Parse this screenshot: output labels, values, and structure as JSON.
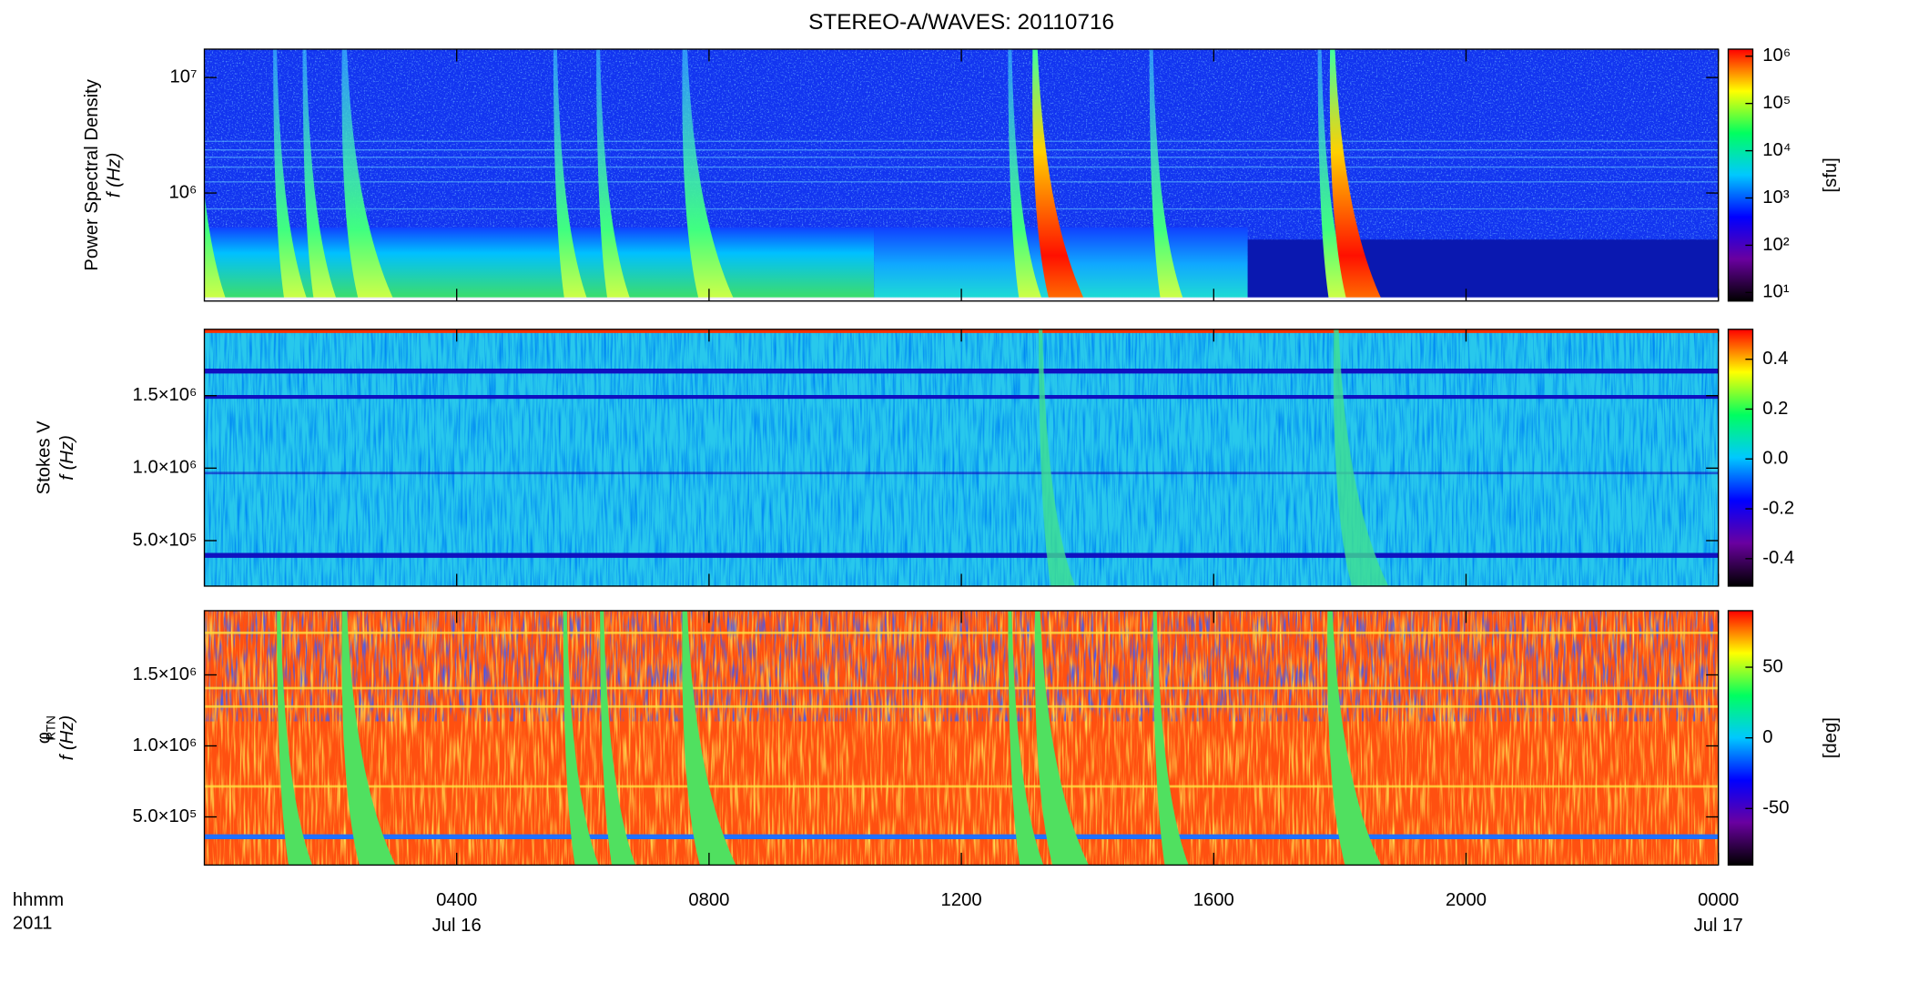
{
  "chart_data": [
    {
      "type": "spectrogram",
      "title": "STEREO-A/WAVES: 20110716",
      "ylabel": "Power Spectral Density",
      "ylabel2": "f (Hz)",
      "ylog": true,
      "ylim": [
        116000,
        17600000
      ],
      "yticks": [
        {
          "value": 1000000,
          "label": "10⁶"
        },
        {
          "value": 10000000,
          "label": "10⁷"
        }
      ],
      "colorbar_log": true,
      "clim": [
        6.6,
        1410000
      ],
      "cticks": [
        {
          "value": 10,
          "label": "10¹"
        },
        {
          "value": 100,
          "label": "10²"
        },
        {
          "value": 1000,
          "label": "10³"
        },
        {
          "value": 10000,
          "label": "10⁴"
        },
        {
          "value": 100000,
          "label": "10⁵"
        },
        {
          "value": 1000000,
          "label": "10⁶"
        }
      ],
      "colorbar_label": "[sfu]",
      "colormap": [
        "#000000",
        "#6a00a0",
        "#0000ff",
        "#00c8ff",
        "#00ff60",
        "#ffff00",
        "#ff0000"
      ]
    },
    {
      "type": "spectrogram",
      "ylabel": "Stokes V",
      "ylabel2": "f (Hz)",
      "ylog": false,
      "ylim": [
        186000,
        1958000
      ],
      "yticks": [
        {
          "value": 500000,
          "label": "5.0×10⁵"
        },
        {
          "value": 1000000,
          "label": "1.0×10⁶"
        },
        {
          "value": 1500000,
          "label": "1.5×10⁶"
        }
      ],
      "colorbar_log": false,
      "clim": [
        -0.51,
        0.52
      ],
      "cticks": [
        -0.4,
        -0.2,
        {
          "value": 0,
          "label": "0.0"
        },
        0.2,
        0.4
      ],
      "colormap": [
        "#000000",
        "#6a00a0",
        "#0000ff",
        "#00c8ff",
        "#00ff60",
        "#ffff00",
        "#ff0000"
      ]
    },
    {
      "type": "spectrogram",
      "ylabel": "φ",
      "ylabel_sub": "RTN",
      "ylabel2": "f (Hz)",
      "ylog": false,
      "ylim": [
        161000,
        1952000
      ],
      "yticks": [
        {
          "value": 500000,
          "label": "5.0×10⁵"
        },
        {
          "value": 1000000,
          "label": "1.0×10⁶"
        },
        {
          "value": 1500000,
          "label": "1.5×10⁶"
        }
      ],
      "colorbar_log": false,
      "clim": [
        -90,
        90
      ],
      "cticks": [
        -50,
        0,
        50
      ],
      "colorbar_label": "[deg]",
      "colormap": [
        "#000000",
        "#6a00a0",
        "#0000ff",
        "#00c8ff",
        "#00ff60",
        "#ffff00",
        "#ff0000"
      ],
      "xlim": [
        0,
        24
      ],
      "xticks": [
        {
          "value": 4,
          "label": "0400"
        },
        {
          "value": 8,
          "label": "0800"
        },
        {
          "value": 12,
          "label": "1200"
        },
        {
          "value": 16,
          "label": "1600"
        },
        {
          "value": 20,
          "label": "2000"
        },
        {
          "value": 24,
          "label": "0000"
        }
      ],
      "date_labels": [
        {
          "value": 4,
          "label": "Jul 16"
        },
        {
          "value": 24,
          "label": "Jul 17"
        }
      ],
      "xlabel": "hhmm",
      "xlabel2": "2011"
    }
  ]
}
